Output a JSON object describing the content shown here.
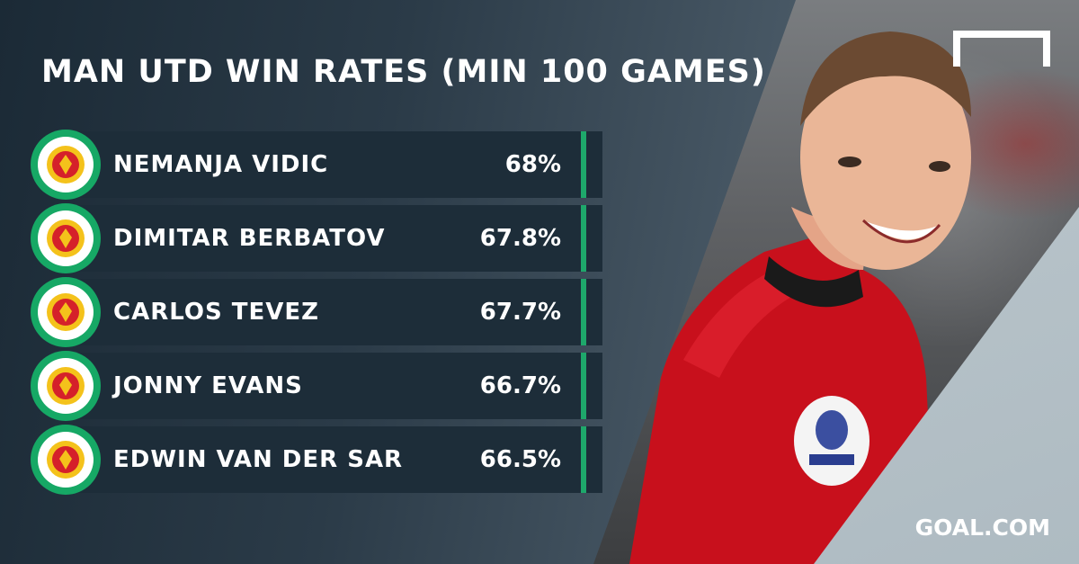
{
  "title": "MAN UTD WIN RATES (MIN 100 GAMES)",
  "brand": {
    "text": "GOAL.COM"
  },
  "colors": {
    "accent_green": "#1ea86b",
    "bar_dark": "#1d2d39",
    "club_red": "#d5202a",
    "club_gold": "#f4c21b"
  },
  "rows": [
    {
      "name": "NEMANJA VIDIC",
      "rate": "68%"
    },
    {
      "name": "DIMITAR BERBATOV",
      "rate": "67.8%"
    },
    {
      "name": "CARLOS TEVEZ",
      "rate": "67.7%"
    },
    {
      "name": "JONNY EVANS",
      "rate": "66.7%"
    },
    {
      "name": "EDWIN VAN DER SAR",
      "rate": "66.5%"
    }
  ]
}
